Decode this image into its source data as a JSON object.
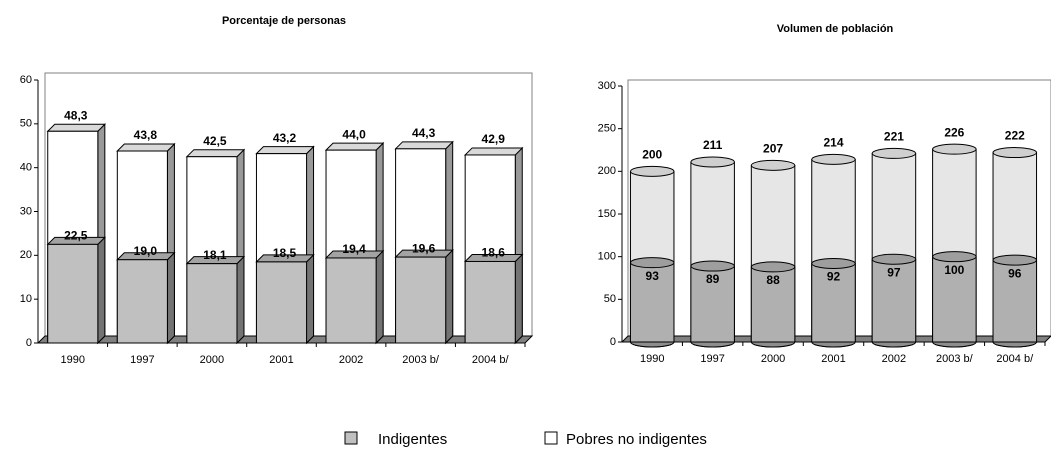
{
  "chart_data": [
    {
      "type": "bar",
      "title": "Porcentaje de personas",
      "categories": [
        "1990",
        "1997",
        "2000",
        "2001",
        "2002",
        "2003 b/",
        "2004 b/"
      ],
      "series": [
        {
          "name": "Indigentes",
          "color": "#c0c0c0",
          "values": [
            22.5,
            19.0,
            18.1,
            18.5,
            19.4,
            19.6,
            18.6
          ],
          "value_labels": [
            "22,5",
            "19,0",
            "18,1",
            "18,5",
            "19,4",
            "19,6",
            "18,6"
          ]
        },
        {
          "name": "Pobres no indigentes",
          "color": "#ffffff",
          "values": [
            48.3,
            43.8,
            42.5,
            43.2,
            44.0,
            44.3,
            42.9
          ],
          "value_labels": [
            "48,3",
            "43,8",
            "42,5",
            "43,2",
            "44,0",
            "44,3",
            "42,9"
          ]
        }
      ],
      "ylim": [
        0,
        60
      ],
      "yticks": [
        0,
        10,
        20,
        30,
        40,
        50,
        60
      ]
    },
    {
      "type": "cylinder",
      "title": "Volumen de población",
      "categories": [
        "1990",
        "1997",
        "2000",
        "2001",
        "2002",
        "2003 b/",
        "2004 b/"
      ],
      "series": [
        {
          "name": "Indigentes",
          "color": "#b0b0b0",
          "values": [
            93,
            89,
            88,
            92,
            97,
            100,
            96
          ]
        },
        {
          "name": "Pobres no indigentes",
          "color": "#e6e6e6",
          "values": [
            200,
            211,
            207,
            214,
            221,
            226,
            222
          ]
        }
      ],
      "ylim": [
        0,
        300
      ],
      "yticks": [
        0,
        50,
        100,
        150,
        200,
        250,
        300
      ]
    }
  ]
}
